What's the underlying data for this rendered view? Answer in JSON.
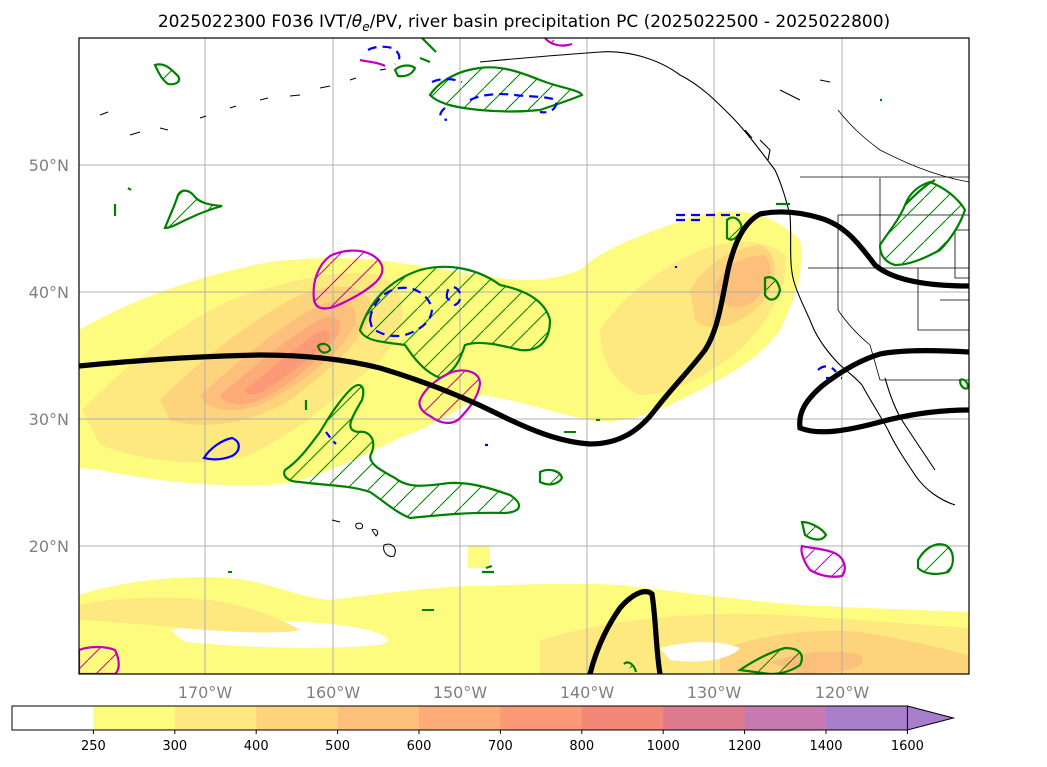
{
  "title": {
    "prefix": "2025022300 F036 IVT/",
    "theta": "θ",
    "theta_sub": "e",
    "suffix": "/PV, river basin precipitation PC (2025022500 - 2025022800)"
  },
  "map": {
    "lat_labels": [
      "50°N",
      "40°N",
      "30°N",
      "20°N"
    ],
    "lon_labels": [
      "170°W",
      "160°W",
      "150°W",
      "140°W",
      "130°W",
      "120°W"
    ],
    "grid": true,
    "extent": {
      "lon_min": -180,
      "lon_max": -107.5,
      "lat_min": 10,
      "lat_max": 60
    }
  },
  "colorbar": {
    "ticks": [
      "250",
      "300",
      "400",
      "500",
      "600",
      "700",
      "800",
      "1000",
      "1200",
      "1400",
      "1600"
    ],
    "colors": [
      "#ffffff",
      "#fdfc7f",
      "#fde980",
      "#fdd47c",
      "#fdc07c",
      "#fdab77",
      "#fc9976",
      "#f38878",
      "#dd7a8d",
      "#c67ab1",
      "#a87dc9"
    ],
    "extend": "max"
  },
  "legend_colors": {
    "pv_contour": "#000000",
    "green_contour": "#008000",
    "magenta_contour": "#c000c0",
    "blue_contour": "#0000ff"
  }
}
